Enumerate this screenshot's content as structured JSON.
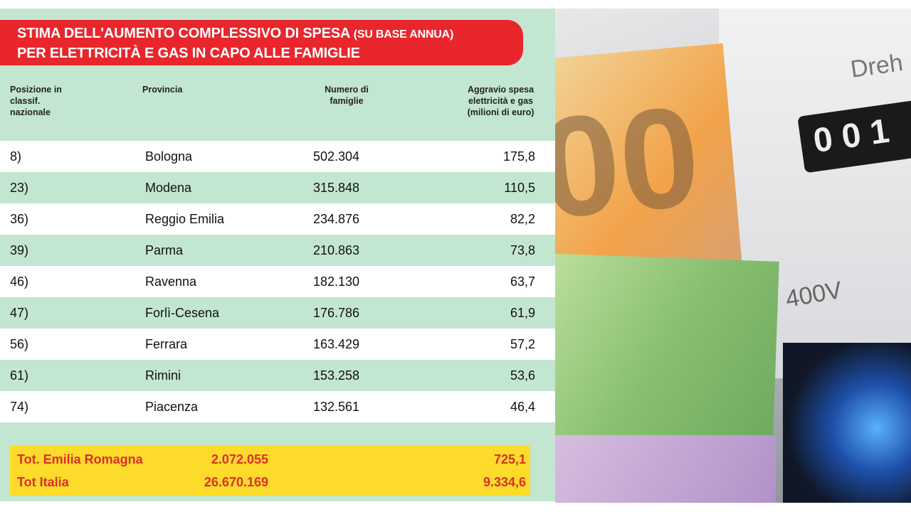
{
  "chart_data": {
    "type": "table",
    "title": "STIMA DELL'AUMENTO COMPLESSIVO DI SPESA (SU BASE ANNUA) PER ELETTRICITÀ E GAS IN CAPO ALLE FAMIGLIE",
    "title_line1": "STIMA DELL'AUMENTO COMPLESSIVO DI SPESA",
    "title_paren": "(SU BASE ANNUA)",
    "title_line2": "PER ELETTRICITÀ E GAS IN CAPO ALLE FAMIGLIE",
    "columns": [
      "Posizione in classif. nazionale",
      "Provincia",
      "Numero di famiglie",
      "Aggravio spesa elettricità e gas (milioni di euro)"
    ],
    "rows": [
      [
        "8)",
        "Bologna",
        "502.304",
        "175,8"
      ],
      [
        "23)",
        "Modena",
        "315.848",
        "110,5"
      ],
      [
        "36)",
        "Reggio Emilia",
        "234.876",
        "82,2"
      ],
      [
        "39)",
        "Parma",
        "210.863",
        "73,8"
      ],
      [
        "46)",
        "Ravenna",
        "182.130",
        "63,7"
      ],
      [
        "47)",
        "Forlì-Cesena",
        "176.786",
        "61,9"
      ],
      [
        "56)",
        "Ferrara",
        "163.429",
        "57,2"
      ],
      [
        "61)",
        "Rimini",
        "153.258",
        "53,6"
      ],
      [
        "74)",
        "Piacenza",
        "132.561",
        "46,4"
      ]
    ],
    "totals": [
      [
        "Tot. Emilia Romagna",
        "2.072.055",
        "725,1"
      ],
      [
        "Tot Italia",
        "26.670.169",
        "9.334,6"
      ]
    ]
  },
  "photo": {
    "meter_text": "Dreh",
    "meter_digits": "0 0 1",
    "voltage": "/ 400V",
    "banknote_digits": "00"
  },
  "colors": {
    "panel": "#c3e6d1",
    "title_bg": "#e8262c",
    "totals_bg": "#fddb2a",
    "totals_text": "#d9302a"
  }
}
